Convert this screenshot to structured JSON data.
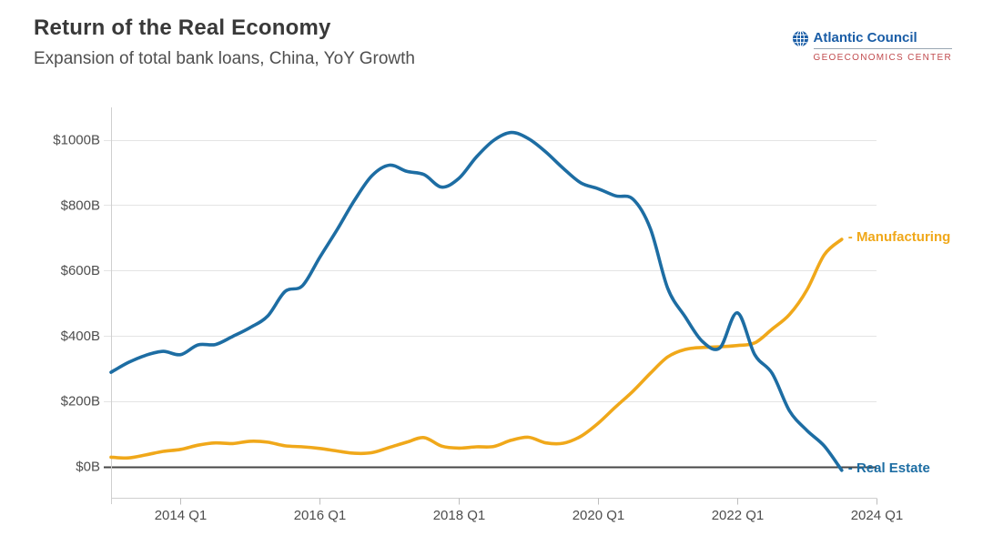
{
  "header": {
    "title": "Return of the Real Economy",
    "subtitle": "Expansion of total bank loans, China, YoY Growth"
  },
  "logo": {
    "org": "Atlantic Council",
    "center": "GEOECONOMICS CENTER",
    "org_color": "#1a5da6",
    "center_color": "#c14b4e",
    "globe_icon": "globe-grid-icon"
  },
  "chart_data": {
    "type": "line",
    "title": "Return of the Real Economy",
    "subtitle": "Expansion of total bank loans, China, YoY Growth",
    "unit": "USD billions, year-over-year growth",
    "frequency": "quarterly",
    "x_start": "2013 Q1",
    "x_end": "2023 Q3",
    "x_axis_ticks": [
      "2014 Q1",
      "2016 Q1",
      "2018 Q1",
      "2020 Q1",
      "2022 Q1",
      "2024 Q1"
    ],
    "y_axis": {
      "tick_labels": [
        "$0B",
        "$200B",
        "$400B",
        "$600B",
        "$800B",
        "$1000B"
      ],
      "tick_values": [
        0,
        200,
        400,
        600,
        800,
        1000
      ],
      "min": -50,
      "max": 1060
    },
    "grid": "horizontal",
    "legend_position": "line-end-labels",
    "callout_dash": "- ",
    "series": [
      {
        "name": "Real Estate",
        "color": "#1d6da3",
        "values": [
          288,
          318,
          340,
          352,
          342,
          372,
          373,
          398,
          425,
          460,
          535,
          553,
          640,
          725,
          815,
          890,
          922,
          903,
          893,
          855,
          882,
          947,
          998,
          1022,
          1003,
          962,
          912,
          868,
          850,
          828,
          818,
          728,
          545,
          458,
          382,
          363,
          470,
          342,
          285,
          170,
          110,
          62,
          -12
        ]
      },
      {
        "name": "Manufacturing",
        "color": "#f0a81a",
        "values": [
          28,
          26,
          35,
          46,
          52,
          65,
          72,
          70,
          77,
          74,
          63,
          60,
          55,
          47,
          40,
          42,
          58,
          74,
          88,
          62,
          56,
          60,
          61,
          80,
          89,
          72,
          71,
          92,
          132,
          182,
          230,
          285,
          335,
          358,
          364,
          366,
          370,
          378,
          420,
          465,
          540,
          648,
          695
        ]
      }
    ]
  }
}
